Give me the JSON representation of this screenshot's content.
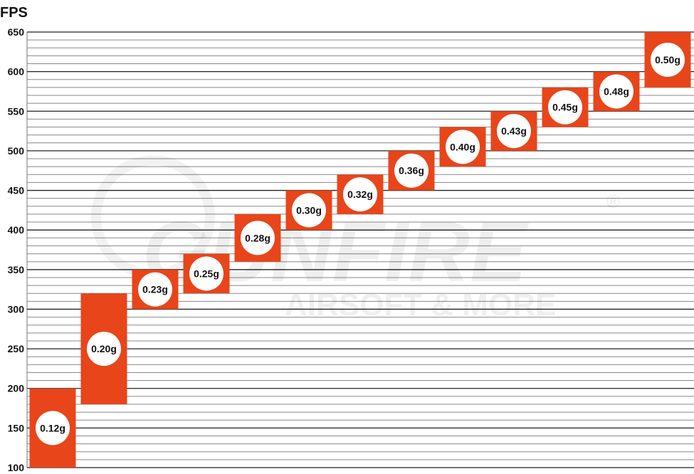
{
  "chart_data": {
    "type": "bar",
    "subtype": "floating-range",
    "ylabel": "FPS",
    "xlabel": "",
    "ylim": [
      100,
      650
    ],
    "yticks": [
      100,
      150,
      200,
      250,
      300,
      350,
      400,
      450,
      500,
      550,
      600,
      650
    ],
    "grid": {
      "minor_step": 10,
      "major_step": 50
    },
    "bar_color": "#e8451a",
    "categories": [
      "0.12g",
      "0.20g",
      "0.23g",
      "0.25g",
      "0.28g",
      "0.30g",
      "0.32g",
      "0.36g",
      "0.40g",
      "0.43g",
      "0.45g",
      "0.48g",
      "0.50g"
    ],
    "ranges": [
      [
        100,
        200
      ],
      [
        180,
        320
      ],
      [
        300,
        350
      ],
      [
        320,
        370
      ],
      [
        360,
        420
      ],
      [
        400,
        450
      ],
      [
        420,
        470
      ],
      [
        450,
        500
      ],
      [
        480,
        530
      ],
      [
        500,
        550
      ],
      [
        530,
        580
      ],
      [
        550,
        600
      ],
      [
        580,
        650
      ]
    ],
    "watermark": {
      "brand": "GUNFIRE",
      "tagline": "AIRSOFT & MORE",
      "mark": "®"
    }
  }
}
